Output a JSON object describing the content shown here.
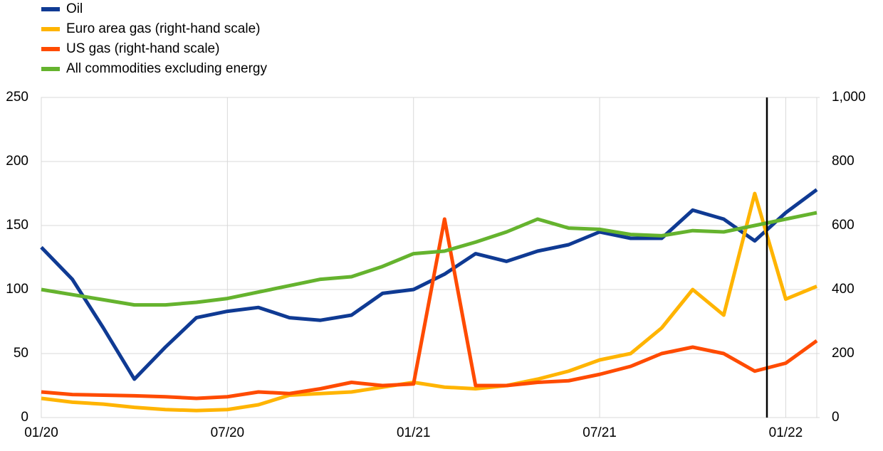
{
  "chart_data": {
    "type": "line",
    "x": [
      "2020-01",
      "2020-02",
      "2020-03",
      "2020-04",
      "2020-05",
      "2020-06",
      "2020-07",
      "2020-08",
      "2020-09",
      "2020-10",
      "2020-11",
      "2020-12",
      "2021-01",
      "2021-02",
      "2021-03",
      "2021-04",
      "2021-05",
      "2021-06",
      "2021-07",
      "2021-08",
      "2021-09",
      "2021-10",
      "2021-11",
      "2021-12",
      "2022-01",
      "2022-02"
    ],
    "xlim": [
      "2020-01",
      "2022-02"
    ],
    "xticks": [
      {
        "value": "2020-01",
        "label": "01/20"
      },
      {
        "value": "2020-07",
        "label": "07/20"
      },
      {
        "value": "2021-01",
        "label": "01/21"
      },
      {
        "value": "2021-07",
        "label": "07/21"
      },
      {
        "value": "2022-01",
        "label": "01/22"
      }
    ],
    "ylim": [
      0,
      250
    ],
    "yticks": [
      0,
      50,
      100,
      150,
      200,
      250
    ],
    "y2lim": [
      0,
      1000
    ],
    "y2ticks": [
      0,
      200,
      400,
      600,
      800,
      {
        "value": 1000,
        "label": "1,000"
      }
    ],
    "grid": true,
    "legend": "top-left",
    "series": [
      {
        "name": "Oil",
        "color": "#0f3a93",
        "values": [
          133,
          108,
          70,
          30,
          55,
          78,
          83,
          86,
          78,
          76,
          80,
          97,
          100,
          112,
          128,
          122,
          130,
          135,
          145,
          140,
          140,
          162,
          155,
          138,
          160,
          178
        ]
      },
      {
        "name": "Euro area gas (right-hand scale)",
        "color": "#ffb400",
        "axis": "y2",
        "values": [
          60,
          48,
          42,
          32,
          25,
          22,
          25,
          40,
          70,
          75,
          80,
          95,
          110,
          95,
          90,
          100,
          120,
          145,
          180,
          200,
          280,
          400,
          320,
          700,
          370,
          410
        ]
      },
      {
        "name": "US gas (right-hand scale)",
        "color": "#ff4b00",
        "axis": "y2",
        "values": [
          80,
          72,
          70,
          68,
          65,
          60,
          65,
          80,
          75,
          90,
          110,
          100,
          105,
          620,
          100,
          100,
          110,
          115,
          135,
          160,
          200,
          220,
          200,
          145,
          170,
          240
        ]
      },
      {
        "name": "All commodities excluding energy",
        "color": "#65b32e",
        "values": [
          100,
          96,
          92,
          88,
          88,
          90,
          93,
          98,
          103,
          108,
          110,
          118,
          128,
          130,
          137,
          145,
          155,
          148,
          147,
          143,
          142,
          146,
          145,
          150,
          155,
          160
        ]
      }
    ]
  }
}
